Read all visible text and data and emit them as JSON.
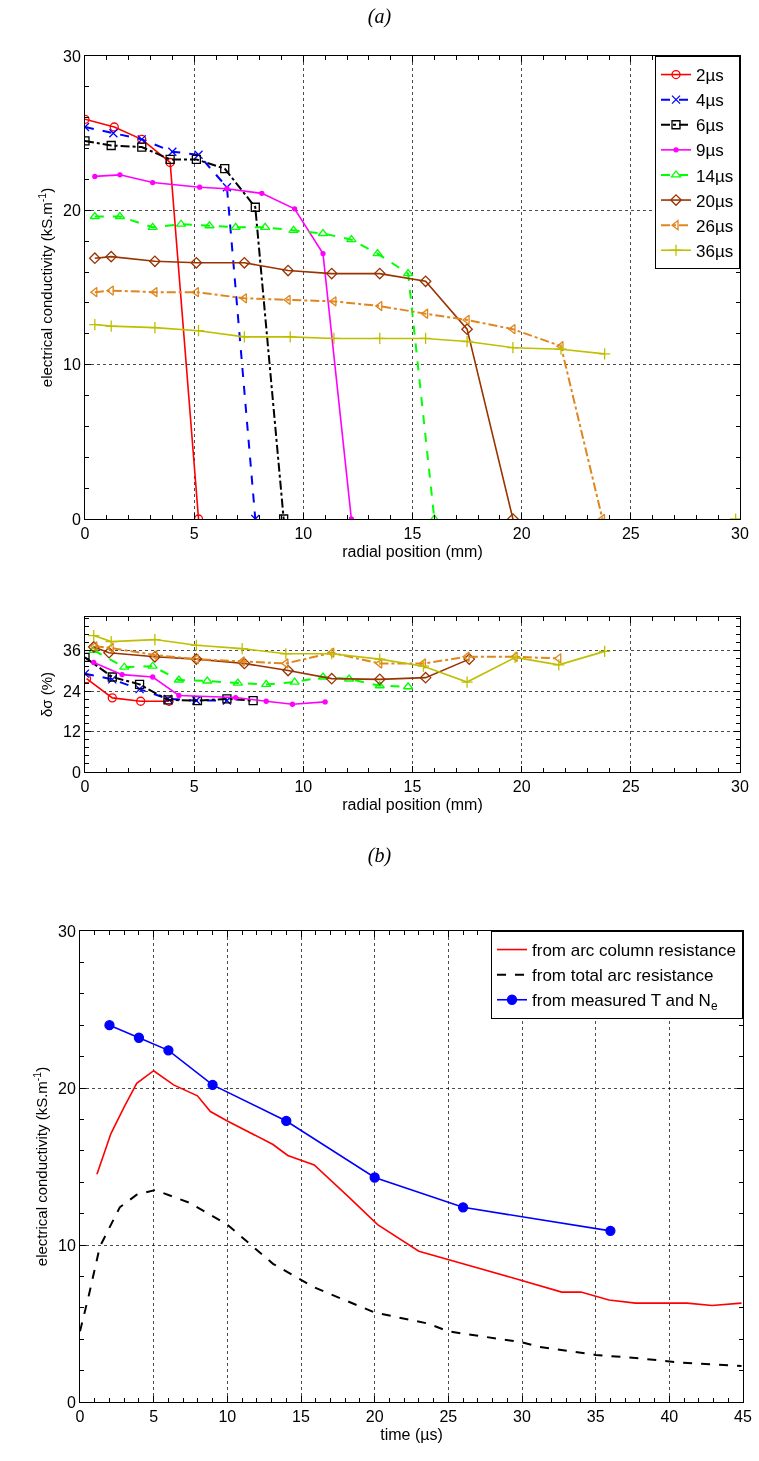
{
  "chart_data": [
    {
      "type": "line",
      "title": "(a)",
      "xlabel": "radial position (mm)",
      "ylabel": "electrical conductivity (kS.m$^{-1}$)",
      "xlim": [
        0,
        30
      ],
      "xticks": [
        0,
        5,
        10,
        15,
        20,
        25,
        30
      ],
      "ylim": [
        0,
        30
      ],
      "yticks": [
        0,
        10,
        20,
        30
      ],
      "grid": true,
      "legend": "top right",
      "series": [
        {
          "name": "2µs",
          "color": "#ff0000",
          "line_style": "solid",
          "marker": "circle",
          "x": [
            0,
            1.34,
            2.6,
            3.9,
            5.2
          ],
          "values": [
            25.9,
            25.4,
            24.6,
            23.1,
            0
          ]
        },
        {
          "name": "4µs",
          "color": "#0000ff",
          "line_style": "dashed",
          "marker": "x",
          "x": [
            0,
            1.3,
            2.6,
            4.0,
            5.2,
            6.5,
            7.8
          ],
          "values": [
            25.4,
            25.0,
            24.6,
            23.8,
            23.6,
            21.5,
            0
          ]
        },
        {
          "name": "6µs",
          "color": "#000000",
          "line_style": "dashdot",
          "marker": "square",
          "x": [
            0,
            1.2,
            2.6,
            3.9,
            5.1,
            6.4,
            7.8,
            9.1
          ],
          "values": [
            24.5,
            24.2,
            24.1,
            23.3,
            23.3,
            22.7,
            20.2,
            0
          ]
        },
        {
          "name": "9µs",
          "color": "#ff00ff",
          "line_style": "solid",
          "marker": "point",
          "x": [
            0.45,
            1.6,
            3.1,
            5.25,
            6.5,
            8.1,
            9.6,
            10.9,
            12.2
          ],
          "values": [
            22.2,
            22.3,
            21.8,
            21.5,
            21.4,
            21.1,
            20.1,
            17.2,
            0
          ]
        },
        {
          "name": "14µs",
          "color": "#00ff00",
          "line_style": "dashed",
          "marker": "triangle",
          "x": [
            0.45,
            1.6,
            3.1,
            4.4,
            5.7,
            6.9,
            8.25,
            9.55,
            10.9,
            12.2,
            13.4,
            14.8,
            16.0
          ],
          "values": [
            19.6,
            19.6,
            18.9,
            19.1,
            19.0,
            18.9,
            18.9,
            18.7,
            18.5,
            18.1,
            17.2,
            15.9,
            0
          ]
        },
        {
          "name": "20µs",
          "color": "#993300",
          "line_style": "solid",
          "marker": "diamond",
          "x": [
            0.45,
            1.2,
            3.2,
            5.1,
            7.3,
            9.3,
            11.3,
            13.5,
            15.6,
            17.5,
            19.6
          ],
          "values": [
            16.9,
            17.0,
            16.7,
            16.6,
            16.6,
            16.1,
            15.9,
            15.9,
            15.4,
            12.3,
            0
          ]
        },
        {
          "name": "26µs",
          "color": "#e0861e",
          "line_style": "dashdot",
          "marker": "triangle-left",
          "x": [
            0.45,
            1.2,
            3.2,
            5.1,
            7.3,
            9.3,
            11.4,
            13.5,
            15.6,
            17.5,
            19.6,
            21.8,
            23.7
          ],
          "values": [
            14.7,
            14.8,
            14.7,
            14.7,
            14.3,
            14.2,
            14.1,
            13.8,
            13.3,
            12.9,
            12.3,
            11.2,
            0
          ]
        },
        {
          "name": "36µs",
          "color": "#bfbf00",
          "line_style": "solid",
          "marker": "cross",
          "x": [
            0.45,
            1.2,
            3.2,
            5.2,
            7.3,
            9.4,
            11.4,
            13.5,
            15.6,
            17.5,
            19.6,
            21.8,
            23.8,
            26.8,
            29.8
          ],
          "values": [
            12.6,
            12.5,
            12.4,
            12.2,
            11.8,
            11.8,
            11.7,
            11.7,
            11.7,
            11.5,
            11.1,
            11.0,
            10.7,
            null,
            0
          ]
        }
      ]
    },
    {
      "type": "line",
      "xlabel": "radial position (mm)",
      "ylabel": "δσ (%)",
      "xlim": [
        0,
        30
      ],
      "xticks": [
        0,
        5,
        10,
        15,
        20,
        25,
        30
      ],
      "ylim": [
        0,
        46
      ],
      "yticks": [
        0,
        12,
        24,
        36
      ],
      "grid": true,
      "series": [
        {
          "color": "#ff0000",
          "line_style": "solid",
          "marker": "circle",
          "x": [
            0.07,
            1.25,
            2.55,
            3.85
          ],
          "values": [
            27.7,
            22.0,
            21.0,
            21.0
          ]
        },
        {
          "color": "#0000ff",
          "line_style": "dashed",
          "marker": "x",
          "x": [
            0,
            1.25,
            2.5,
            3.8,
            5.1,
            6.5
          ],
          "values": [
            29.2,
            27.5,
            24.6,
            21.7,
            21.2,
            21.2
          ]
        },
        {
          "color": "#000000",
          "line_style": "dashdot",
          "marker": "square",
          "x": [
            0,
            1.25,
            2.5,
            3.8,
            5.15,
            6.5,
            7.7
          ],
          "values": [
            34.0,
            28.2,
            26.0,
            21.4,
            21.2,
            21.7,
            21.2
          ]
        },
        {
          "color": "#ff00ff",
          "line_style": "solid",
          "marker": "point",
          "x": [
            0.4,
            1.7,
            3.1,
            4.3,
            6.9,
            8.3,
            9.5,
            11.0
          ],
          "values": [
            32.5,
            28.9,
            28.2,
            22.7,
            22.1,
            21.0,
            20.1,
            20.8
          ]
        },
        {
          "color": "#00ff00",
          "line_style": "dashed",
          "marker": "triangle",
          "x": [
            0.4,
            1.8,
            3.1,
            4.3,
            5.6,
            7.0,
            8.3,
            9.6,
            10.9,
            12.1,
            13.5,
            14.8
          ],
          "values": [
            36.1,
            31.1,
            31.4,
            27.3,
            27.0,
            26.4,
            26.0,
            26.7,
            28.2,
            27.6,
            25.6,
            25.3
          ]
        },
        {
          "color": "#993300",
          "line_style": "solid",
          "marker": "diamond",
          "x": [
            0.4,
            1.1,
            3.2,
            5.1,
            7.3,
            9.3,
            11.3,
            13.5,
            15.6,
            17.6
          ],
          "values": [
            37.1,
            35.4,
            34.2,
            33.5,
            32.2,
            30.1,
            27.7,
            27.5,
            28.0,
            33.5
          ]
        },
        {
          "color": "#e0861e",
          "line_style": "dashdot",
          "marker": "triangle-left",
          "x": [
            0.45,
            1.2,
            3.2,
            5.1,
            7.2,
            9.2,
            11.3,
            13.5,
            15.5,
            17.5,
            19.7,
            21.7
          ],
          "values": [
            37.3,
            36.8,
            34.7,
            33.5,
            32.8,
            32.2,
            35.4,
            32.2,
            32.2,
            34.2,
            34.2,
            33.7
          ]
        },
        {
          "color": "#bfbf00",
          "line_style": "solid",
          "marker": "cross",
          "x": [
            0.4,
            1.2,
            3.2,
            5.1,
            7.2,
            9.2,
            11.3,
            13.5,
            15.5,
            17.5,
            19.7,
            21.7,
            23.8
          ],
          "values": [
            40.5,
            38.7,
            39.3,
            37.6,
            36.6,
            35.1,
            35.1,
            33.5,
            31.4,
            26.7,
            34.0,
            31.8,
            35.8
          ]
        }
      ]
    },
    {
      "type": "line",
      "title": "(b)",
      "xlabel": "time (µs)",
      "ylabel": "electrical conductivity (kS.m$^{-1}$)",
      "xlim": [
        0,
        45
      ],
      "xticks": [
        0,
        5,
        10,
        15,
        20,
        25,
        30,
        35,
        40,
        45
      ],
      "ylim": [
        0,
        30
      ],
      "yticks": [
        0,
        10,
        20,
        30
      ],
      "grid": true,
      "legend": "top right",
      "series": [
        {
          "name": "from arc column resistance",
          "color": "#ff0000",
          "line_style": "solid",
          "marker": "none",
          "x": [
            1.15,
            2.1,
            3.0,
            3.85,
            5.0,
            6.35,
            7.97,
            8.85,
            10,
            13.1,
            14.1,
            15.9,
            18.3,
            20.2,
            23,
            29.4,
            32.7,
            34,
            35.9,
            37.7,
            41.2,
            42.9,
            44.9
          ],
          "values": [
            14.5,
            17.1,
            18.8,
            20.3,
            21.1,
            20.2,
            19.5,
            18.5,
            17.9,
            16.4,
            15.7,
            15.1,
            13.0,
            11.3,
            9.6,
            7.9,
            7.0,
            7.0,
            6.5,
            6.3,
            6.3,
            6.15,
            6.3
          ]
        },
        {
          "name": "from total arc resistance",
          "color": "#000000",
          "line_style": "dashed",
          "marker": "none",
          "x": [
            0,
            0.6,
            1.35,
            2.7,
            3.85,
            5.1,
            7.4,
            10,
            13.1,
            15.9,
            20,
            23.6,
            25,
            30,
            31.2,
            35,
            37.7,
            40.9,
            44.9
          ],
          "values": [
            4.5,
            6.8,
            9.9,
            12.4,
            13.2,
            13.5,
            12.7,
            11.3,
            8.8,
            7.3,
            5.7,
            5.0,
            4.5,
            3.8,
            3.5,
            3.0,
            2.8,
            2.5,
            2.3
          ]
        },
        {
          "name": "from measured T and N$_{e}$",
          "color": "#0000ff",
          "line_style": "solid",
          "marker": "circle",
          "x": [
            2,
            4,
            6,
            9,
            14,
            20,
            26,
            36
          ],
          "values": [
            24.0,
            23.2,
            22.4,
            20.2,
            17.9,
            14.3,
            12.4,
            10.9
          ]
        }
      ]
    }
  ]
}
